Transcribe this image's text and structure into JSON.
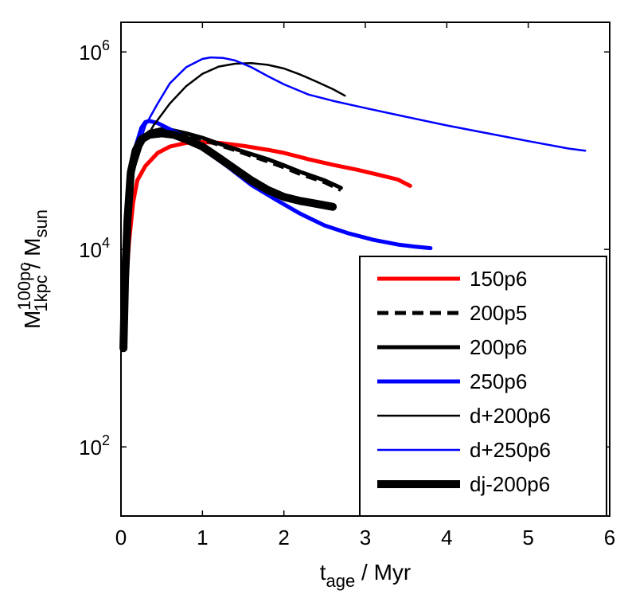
{
  "chart_data": {
    "type": "line",
    "xlabel": {
      "main": "t",
      "sub": "age",
      "rest": " / Myr"
    },
    "ylabel": {
      "main": "M",
      "sup": "100pc",
      "sub": "1kpc",
      "rest": " / M",
      "rest_sub": "sun"
    },
    "xlim": [
      0,
      6
    ],
    "ylim_log10": [
      1.3,
      6.3
    ],
    "xscale": "linear",
    "yscale": "log",
    "xticks": [
      0,
      1,
      2,
      3,
      4,
      5,
      6
    ],
    "xtick_labels": [
      "0",
      "1",
      "2",
      "3",
      "4",
      "5",
      "6"
    ],
    "yticks_log10": [
      2,
      4,
      6
    ],
    "ytick_labels": [
      {
        "base": "10",
        "exp": "2"
      },
      {
        "base": "10",
        "exp": "4"
      },
      {
        "base": "10",
        "exp": "6"
      }
    ],
    "legend_position": "bottom-right",
    "series": [
      {
        "name": "150p6",
        "color": "#ff0000",
        "width": 5,
        "dash": "",
        "x": [
          0.03,
          0.06,
          0.1,
          0.15,
          0.2,
          0.3,
          0.45,
          0.6,
          0.8,
          1.0,
          1.2,
          1.5,
          1.8,
          2.0,
          2.3,
          2.6,
          2.9,
          3.2,
          3.4,
          3.55
        ],
        "y": [
          1000,
          4000,
          12000,
          30000,
          50000,
          70000,
          95000,
          110000,
          120000,
          122000,
          120000,
          112000,
          102000,
          95000,
          82000,
          72000,
          64000,
          56000,
          51000,
          44000
        ]
      },
      {
        "name": "200p5",
        "color": "#000000",
        "width": 5,
        "dash": "14,8",
        "x": [
          0.03,
          0.05,
          0.08,
          0.12,
          0.18,
          0.25,
          0.35,
          0.5,
          0.65,
          0.8,
          1.0,
          1.2,
          1.5,
          1.8,
          2.0,
          2.2,
          2.5,
          2.7
        ],
        "y": [
          1000,
          5000,
          20000,
          60000,
          100000,
          130000,
          150000,
          160000,
          155000,
          145000,
          130000,
          115000,
          95000,
          78000,
          68000,
          58000,
          48000,
          40000
        ]
      },
      {
        "name": "200p6",
        "color": "#000000",
        "width": 5,
        "dash": "",
        "x": [
          0.03,
          0.05,
          0.08,
          0.12,
          0.18,
          0.25,
          0.35,
          0.5,
          0.65,
          0.8,
          1.0,
          1.2,
          1.5,
          1.8,
          2.0,
          2.2,
          2.5,
          2.7
        ],
        "y": [
          1000,
          5000,
          20000,
          60000,
          100000,
          130000,
          155000,
          165000,
          160000,
          150000,
          135000,
          118000,
          98000,
          82000,
          71000,
          61000,
          50000,
          42000
        ]
      },
      {
        "name": "250p6",
        "color": "#0000ff",
        "width": 5,
        "dash": "",
        "x": [
          0.03,
          0.05,
          0.08,
          0.12,
          0.18,
          0.25,
          0.3,
          0.35,
          0.45,
          0.6,
          0.8,
          1.0,
          1.3,
          1.6,
          1.9,
          2.2,
          2.5,
          2.8,
          3.1,
          3.4,
          3.6,
          3.8
        ],
        "y": [
          1000,
          4000,
          15000,
          50000,
          110000,
          170000,
          195000,
          200000,
          190000,
          165000,
          135000,
          105000,
          70000,
          45000,
          32000,
          23000,
          17500,
          14500,
          12500,
          11200,
          10700,
          10300
        ]
      },
      {
        "name": "d+200p6",
        "color": "#000000",
        "width": 2.5,
        "dash": "",
        "x": [
          0.03,
          0.06,
          0.1,
          0.15,
          0.25,
          0.4,
          0.6,
          0.8,
          1.0,
          1.2,
          1.4,
          1.6,
          1.8,
          2.0,
          2.2,
          2.4,
          2.6,
          2.75
        ],
        "y": [
          1000,
          5000,
          20000,
          60000,
          110000,
          180000,
          300000,
          450000,
          600000,
          710000,
          760000,
          770000,
          740000,
          680000,
          590000,
          500000,
          420000,
          360000
        ]
      },
      {
        "name": "d+250p6",
        "color": "#0000ff",
        "width": 2.5,
        "dash": "",
        "x": [
          0.03,
          0.06,
          0.1,
          0.15,
          0.2,
          0.3,
          0.45,
          0.6,
          0.8,
          1.0,
          1.1,
          1.25,
          1.4,
          1.6,
          1.8,
          2.0,
          2.3,
          2.6,
          3.0,
          3.5,
          4.0,
          4.5,
          5.0,
          5.5,
          5.7
        ],
        "y": [
          1000,
          5000,
          20000,
          60000,
          100000,
          180000,
          300000,
          480000,
          700000,
          850000,
          880000,
          870000,
          820000,
          700000,
          570000,
          470000,
          370000,
          320000,
          270000,
          220000,
          180000,
          150000,
          125000,
          105000,
          100000
        ]
      },
      {
        "name": "dj-200p6",
        "color": "#000000",
        "width": 10,
        "dash": "",
        "x": [
          0.03,
          0.05,
          0.08,
          0.12,
          0.18,
          0.25,
          0.35,
          0.5,
          0.65,
          0.8,
          1.0,
          1.2,
          1.4,
          1.6,
          1.8,
          2.0,
          2.2,
          2.4,
          2.6
        ],
        "y": [
          1000,
          5000,
          20000,
          60000,
          100000,
          130000,
          145000,
          150000,
          145000,
          130000,
          110000,
          85000,
          65000,
          50000,
          40000,
          34000,
          31000,
          29000,
          27000
        ]
      }
    ]
  }
}
